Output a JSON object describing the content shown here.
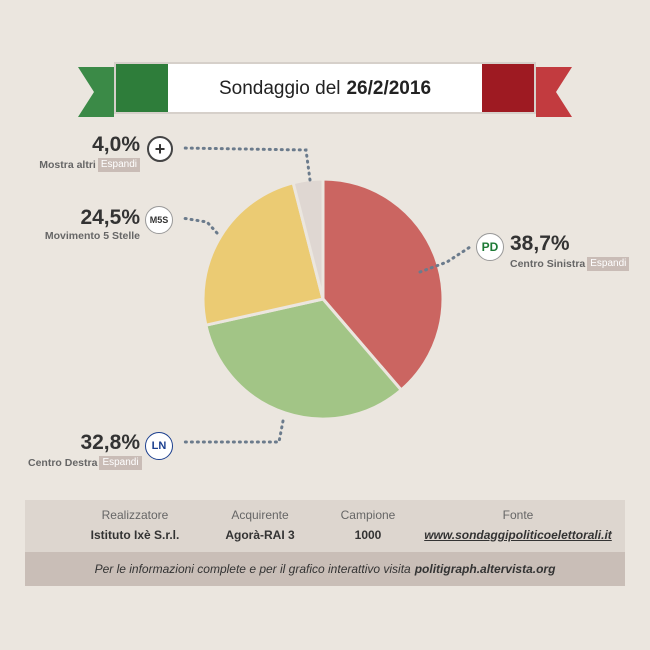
{
  "header": {
    "title_prefix": "Sondaggio del",
    "title_date": "26/2/2016",
    "colors": {
      "green": "#2e7d3a",
      "red": "#9e1a22",
      "white": "#ffffff"
    }
  },
  "chart_data": {
    "type": "pie",
    "title": "Sondaggio del 26/2/2016",
    "slices": [
      {
        "name": "Centro Sinistra",
        "value": 38.7,
        "pct_label": "38,7%",
        "color": "#cb6561",
        "expand": "Espandi",
        "logo_text": "PD"
      },
      {
        "name": "Centro Destra",
        "value": 32.8,
        "pct_label": "32,8%",
        "color": "#a2c586",
        "expand": "Espandi",
        "logo_text": "LN"
      },
      {
        "name": "Movimento 5 Stelle",
        "value": 24.5,
        "pct_label": "24,5%",
        "color": "#ebcb73",
        "expand": "",
        "logo_text": "M5S"
      },
      {
        "name": "Mostra altri",
        "value": 4.0,
        "pct_label": "4,0%",
        "color": "#dfd7d2",
        "expand": "Espandi",
        "logo_text": "+"
      }
    ]
  },
  "info": {
    "realizzatore_label": "Realizzatore",
    "realizzatore_value": "Istituto Ixè S.r.l.",
    "acquirente_label": "Acquirente",
    "acquirente_value": "Agorà-RAI 3",
    "campione_label": "Campione",
    "campione_value": "1000",
    "fonte_label": "Fonte",
    "fonte_value": "www.sondaggipoliticoelettorali.it"
  },
  "footer": {
    "text": "Per le informazioni complete e per il grafico interattivo visita",
    "link": "politigraph.altervista.org"
  }
}
